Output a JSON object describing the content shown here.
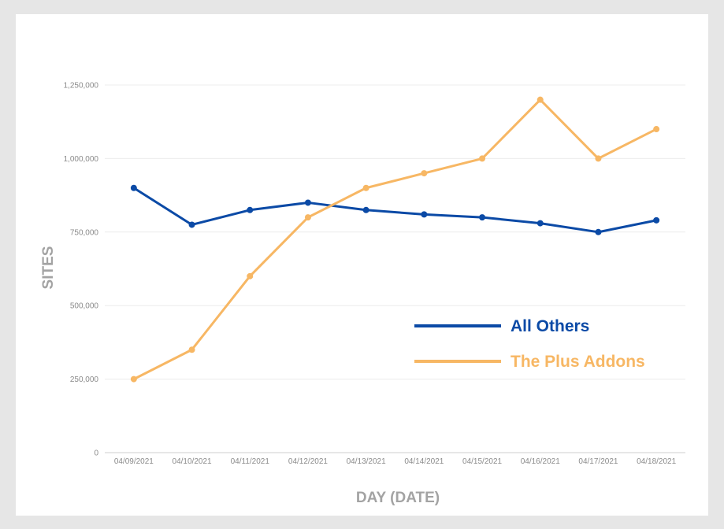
{
  "chart_data": {
    "type": "line",
    "title": "",
    "xlabel": "DAY (DATE)",
    "ylabel": "SITES",
    "categories": [
      "04/09/2021",
      "04/10/2021",
      "04/11/2021",
      "04/12/2021",
      "04/13/2021",
      "04/14/2021",
      "04/15/2021",
      "04/16/2021",
      "04/17/2021",
      "04/18/2021"
    ],
    "ylim": [
      0,
      1250000
    ],
    "yticks": [
      {
        "value": 0,
        "label": "0"
      },
      {
        "value": 250000,
        "label": "250,000"
      },
      {
        "value": 500000,
        "label": "500,000"
      },
      {
        "value": 750000,
        "label": "750,000"
      },
      {
        "value": 1000000,
        "label": "1,000,000"
      },
      {
        "value": 1250000,
        "label": "1,250,000"
      }
    ],
    "grid": true,
    "legend_position": "right",
    "series": [
      {
        "name": "All Others",
        "color": "#0b4aa6",
        "values": [
          900000,
          775000,
          825000,
          850000,
          825000,
          810000,
          800000,
          780000,
          750000,
          790000
        ]
      },
      {
        "name": "The Plus Addons",
        "color": "#f7b764",
        "values": [
          250000,
          350000,
          600000,
          800000,
          900000,
          950000,
          1000000,
          1200000,
          1000000,
          1100000
        ]
      }
    ]
  }
}
